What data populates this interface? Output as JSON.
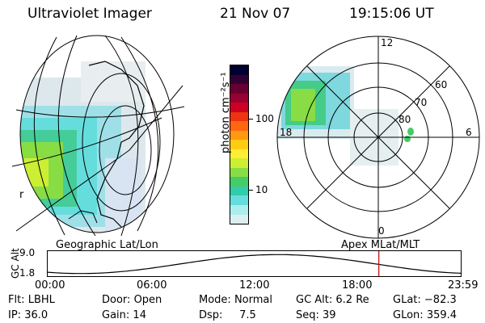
{
  "header": {
    "title": "Ultraviolet Imager",
    "date": "21 Nov 07",
    "time": "19:15:06 UT"
  },
  "geo_panel": {
    "label": "Geographic Lat/Lon",
    "edge_tick": "r"
  },
  "colorbar": {
    "unit_label": "photon cm⁻²s⁻¹",
    "tick_labels": [
      "100",
      "10"
    ],
    "colors": [
      "#000033",
      "#330033",
      "#660033",
      "#990033",
      "#cc0022",
      "#ee3311",
      "#ff6611",
      "#ff9911",
      "#ffcc11",
      "#ffee33",
      "#ccee33",
      "#88dd44",
      "#44cc66",
      "#33ccaa",
      "#66dddd",
      "#aaeeee",
      "#ddeeee"
    ]
  },
  "polar_panel": {
    "label": "Apex  MLat/MLT",
    "mlt_labels": {
      "top": "12",
      "right": "6",
      "bottom": "0",
      "left": "18"
    },
    "lat_labels": [
      "60",
      "70",
      "80"
    ]
  },
  "alt_plot": {
    "ylabel": "GC Alt",
    "y_ticks": [
      "9.0",
      "1.8"
    ],
    "x_ticks": [
      "00:00",
      "06:00",
      "12:00",
      "18:00",
      "23:59"
    ],
    "marker_color": "#cc2222",
    "current_time_fraction": 0.8
  },
  "status": {
    "row1": [
      {
        "label": "Flt:",
        "value": "LBHL"
      },
      {
        "label": "Door:",
        "value": "Open"
      },
      {
        "label": "Mode:",
        "value": "Normal"
      },
      {
        "label": "GC Alt:",
        "value": "6.2 Re"
      },
      {
        "label": "GLat:",
        "value": "−82.3"
      }
    ],
    "row2": [
      {
        "label": "IP:",
        "value": "36.0"
      },
      {
        "label": "Gain:",
        "value": "14"
      },
      {
        "label": "Dsp:",
        "value": "7.5"
      },
      {
        "label": "Seq:",
        "value": "39"
      },
      {
        "label": "GLon:",
        "value": "359.4"
      }
    ]
  }
}
